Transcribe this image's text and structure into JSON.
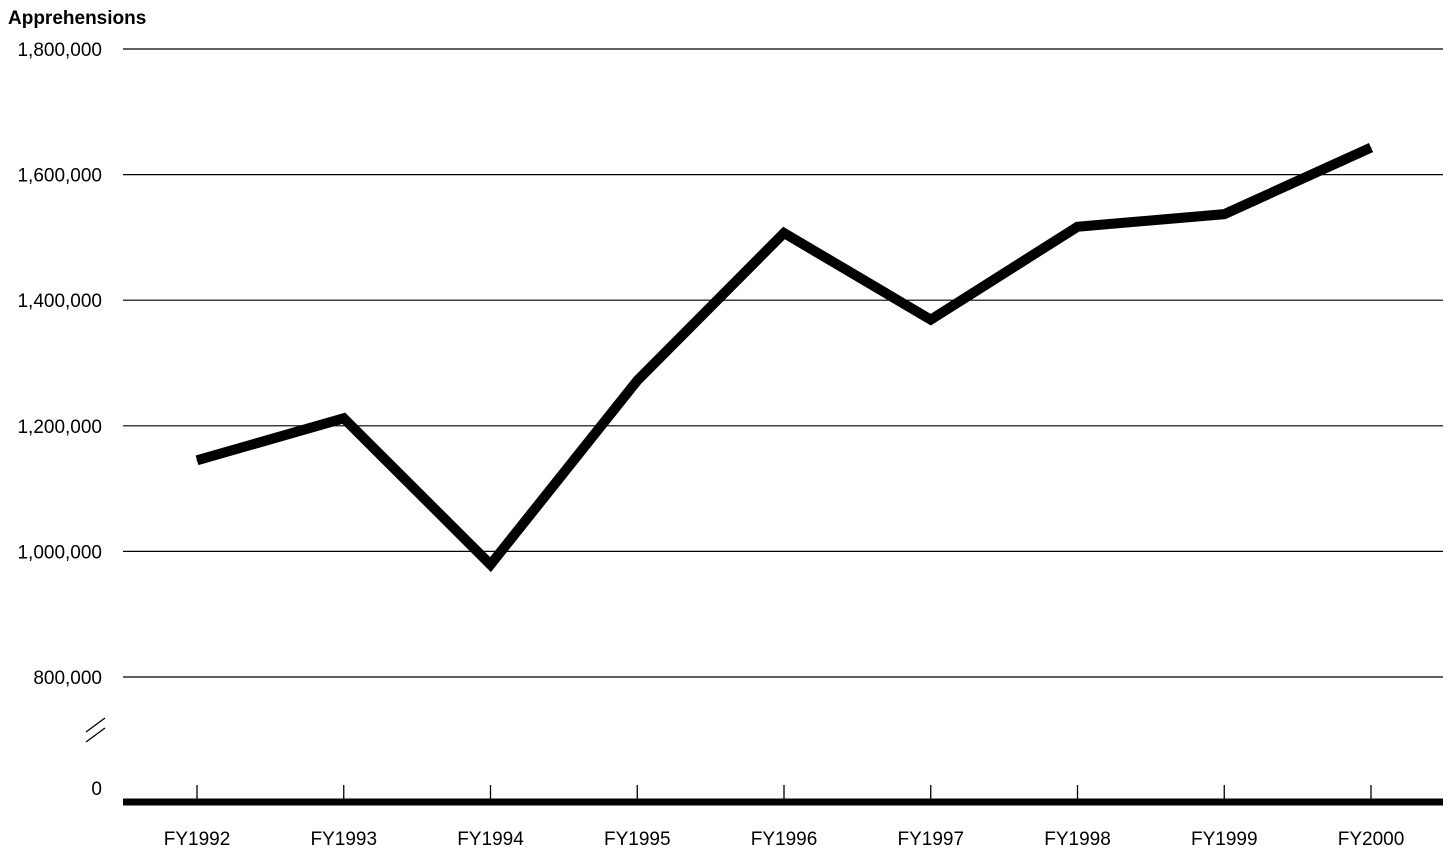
{
  "chart_data": {
    "type": "line",
    "ylabel": "Apprehensions",
    "categories": [
      "FY1992",
      "FY1993",
      "FY1994",
      "FY1995",
      "FY1996",
      "FY1997",
      "FY1998",
      "FY1999",
      "FY2000"
    ],
    "series": [
      {
        "values": [
          1145000,
          1212000,
          979000,
          1272000,
          1507000,
          1369000,
          1517000,
          1537000,
          1643000
        ]
      }
    ],
    "y_ticks": [
      {
        "value": 800000,
        "label": "800,000"
      },
      {
        "value": 1000000,
        "label": "1,000,000"
      },
      {
        "value": 1200000,
        "label": "1,200,000"
      },
      {
        "value": 1400000,
        "label": "1,400,000"
      },
      {
        "value": 1600000,
        "label": "1,600,000"
      },
      {
        "value": 1800000,
        "label": "1,800,000"
      }
    ],
    "zero_label": "0",
    "ylim": [
      800000,
      1800000
    ],
    "axis_break": true,
    "grid": true,
    "line_color": "#000000",
    "grid_color": "#000000"
  }
}
